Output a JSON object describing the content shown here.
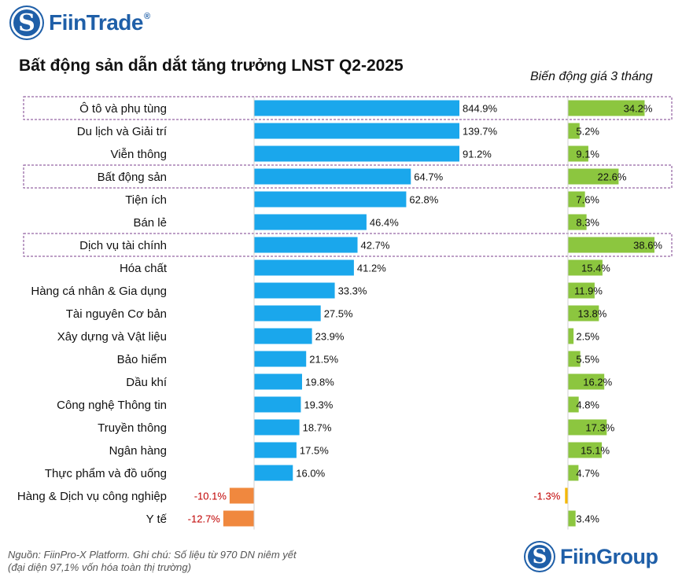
{
  "brand": {
    "name": "FiinTrade",
    "reg": "®",
    "logo_glyph": "S",
    "footer_brand": "FiinGroup"
  },
  "title": "Bất động sản dẫn dắt tăng trưởng LNST Q2-2025",
  "right_header": "Biến động giá 3 tháng",
  "footer": {
    "line1": "Nguồn: FiinPro-X Platform. Ghi chú: Số liệu từ 970 DN niêm yết",
    "line2": "(đại diện 97,1% vốn hóa toàn thị trường)"
  },
  "colors": {
    "profit_positive": "#1aa7ec",
    "profit_negative": "#f0883e",
    "price_positive": "#8cc63f",
    "price_negative": "#f5b800",
    "highlight_border": "#7b3f8c",
    "negative_label": "#c00000"
  },
  "chart_data": {
    "type": "bar",
    "title": "Bất động sản dẫn dắt tăng trưởng LNST Q2-2025",
    "categories": [
      "Ô tô và phụ tùng",
      "Du lịch và Giải trí",
      "Viễn thông",
      "Bất động sản",
      "Tiện ích",
      "Bán lẻ",
      "Dịch vụ tài chính",
      "Hóa chất",
      "Hàng cá nhân & Gia dụng",
      "Tài nguyên Cơ bản",
      "Xây dựng và Vật liệu",
      "Bảo hiểm",
      "Dầu khí",
      "Công nghệ Thông tin",
      "Truyền thông",
      "Ngân hàng",
      "Thực phẩm và đồ uống",
      "Hàng & Dịch vụ công nghiệp",
      "Y tế"
    ],
    "highlighted": [
      "Ô tô và phụ tùng",
      "Bất động sản",
      "Dịch vụ tài chính"
    ],
    "series": [
      {
        "name": "Tăng trưởng LNST Q2-2025",
        "values": [
          844.9,
          139.7,
          91.2,
          64.7,
          62.8,
          46.4,
          42.7,
          41.2,
          33.3,
          27.5,
          23.9,
          21.5,
          19.8,
          19.3,
          18.7,
          17.5,
          16.0,
          -10.1,
          -12.7
        ],
        "labels": [
          "844.9%",
          "139.7%",
          "91.2%",
          "64.7%",
          "62.8%",
          "46.4%",
          "42.7%",
          "41.2%",
          "33.3%",
          "27.5%",
          "23.9%",
          "21.5%",
          "19.8%",
          "19.3%",
          "18.7%",
          "17.5%",
          "16.0%",
          "-10.1%",
          "-12.7%"
        ]
      },
      {
        "name": "Biến động giá 3 tháng",
        "values": [
          34.2,
          5.2,
          9.1,
          22.6,
          7.6,
          8.3,
          38.6,
          15.4,
          11.9,
          13.8,
          2.5,
          5.5,
          16.2,
          4.8,
          17.3,
          15.1,
          4.7,
          -1.3,
          3.4
        ],
        "labels": [
          "34.2%",
          "5.2%",
          "9.1%",
          "22.6%",
          "7.6%",
          "8.3%",
          "38.6%",
          "15.4%",
          "11.9%",
          "13.8%",
          "2.5%",
          "5.5%",
          "16.2%",
          "4.8%",
          "17.3%",
          "15.1%",
          "4.7%",
          "-1.3%",
          "3.4%"
        ]
      }
    ],
    "xlabel": "",
    "ylabel": ""
  }
}
